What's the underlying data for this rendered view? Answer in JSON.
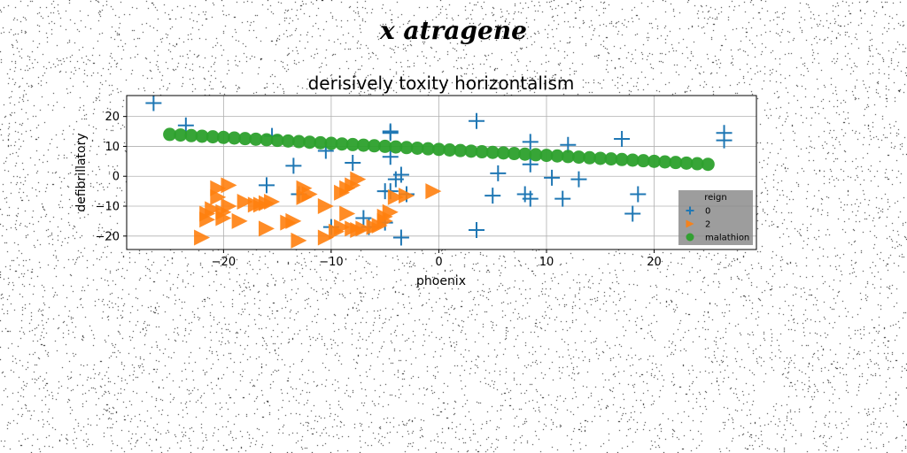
{
  "figure": {
    "suptitle": "x atragene"
  },
  "chart_data": {
    "type": "scatter",
    "title": "derisively toxity horizontalism",
    "xlabel": "phoenix",
    "ylabel": "defibrillatory",
    "xlim": [
      -29,
      29.5
    ],
    "ylim": [
      -24.5,
      27
    ],
    "xticks": [
      -20,
      -10,
      0,
      10,
      20
    ],
    "yticks": [
      -20,
      -10,
      0,
      10,
      20
    ],
    "grid": true,
    "legend": {
      "title": "reign",
      "position": "lower-right"
    },
    "series": [
      {
        "name": "0",
        "marker": "plus",
        "color": "#1f77b4",
        "points": [
          [
            -26.5,
            24.5
          ],
          [
            -23.5,
            17
          ],
          [
            -15.5,
            13.5
          ],
          [
            -13.5,
            3.5
          ],
          [
            -13,
            -6
          ],
          [
            -10.5,
            8.5
          ],
          [
            -8,
            4.5
          ],
          [
            -10,
            -17
          ],
          [
            -7,
            -14
          ],
          [
            -6.5,
            -17
          ],
          [
            -5,
            -15.5
          ],
          [
            -4.5,
            14.5
          ],
          [
            -4.5,
            15
          ],
          [
            -4.5,
            6.5
          ],
          [
            -4.5,
            -5
          ],
          [
            -4,
            -1
          ],
          [
            -3.5,
            -20.5
          ],
          [
            -3.5,
            0.5
          ],
          [
            -5,
            -5
          ],
          [
            -3,
            -6
          ],
          [
            -16,
            -3
          ],
          [
            3.5,
            18.5
          ],
          [
            3.5,
            -18
          ],
          [
            5,
            -6.5
          ],
          [
            5.5,
            1
          ],
          [
            8,
            -6
          ],
          [
            8.5,
            4
          ],
          [
            8.5,
            11.5
          ],
          [
            8.5,
            -7.5
          ],
          [
            10.5,
            -0.5
          ],
          [
            11.5,
            -7.5
          ],
          [
            12,
            10.5
          ],
          [
            13,
            -1
          ],
          [
            17,
            12.5
          ],
          [
            18,
            -12.5
          ],
          [
            18.5,
            -6
          ],
          [
            26.5,
            14.5
          ],
          [
            26.5,
            12
          ]
        ]
      },
      {
        "name": "2",
        "marker": "triangle-right",
        "color": "#ff7f0e",
        "points": [
          [
            -22,
            -20.5
          ],
          [
            -21.5,
            -12.5
          ],
          [
            -21,
            -11
          ],
          [
            -21.5,
            -14.5
          ],
          [
            -20.5,
            -4
          ],
          [
            -20.5,
            -7
          ],
          [
            -20,
            -12
          ],
          [
            -20,
            -14
          ],
          [
            -19.5,
            -10
          ],
          [
            -19.5,
            -3
          ],
          [
            -18.5,
            -15
          ],
          [
            -18,
            -8.5
          ],
          [
            -17,
            -9.5
          ],
          [
            -16.5,
            -9.5
          ],
          [
            -16,
            -17.5
          ],
          [
            -16,
            -9
          ],
          [
            -15.5,
            -8.5
          ],
          [
            -14,
            -15.5
          ],
          [
            -13.5,
            -15
          ],
          [
            -13,
            -21.5
          ],
          [
            -12.5,
            -4
          ],
          [
            -12.5,
            -7
          ],
          [
            -12,
            -6
          ],
          [
            -10.5,
            -20.5
          ],
          [
            -10.5,
            -10
          ],
          [
            -9.5,
            -18.5
          ],
          [
            -9,
            -5.5
          ],
          [
            -9,
            -17
          ],
          [
            -8.5,
            -12.5
          ],
          [
            -8.5,
            -4
          ],
          [
            -8,
            -17.5
          ],
          [
            -8,
            -3
          ],
          [
            -7.5,
            -1
          ],
          [
            -7.5,
            -18
          ],
          [
            -7,
            -17.5
          ],
          [
            -6,
            -17
          ],
          [
            -5.5,
            -16.5
          ],
          [
            -5,
            -15
          ],
          [
            -5,
            -13.5
          ],
          [
            -4.5,
            -12
          ],
          [
            -4,
            -7
          ],
          [
            -3,
            -6.5
          ],
          [
            -0.5,
            -5
          ]
        ]
      },
      {
        "name": "malathion",
        "marker": "circle",
        "color": "#2ca02c",
        "points": [
          [
            -25,
            14
          ],
          [
            -24,
            13.8
          ],
          [
            -23,
            13.6
          ],
          [
            -22,
            13.4
          ],
          [
            -21,
            13.2
          ],
          [
            -20,
            13
          ],
          [
            -19,
            12.8
          ],
          [
            -18,
            12.6
          ],
          [
            -17,
            12.4
          ],
          [
            -16,
            12.2
          ],
          [
            -15,
            12
          ],
          [
            -14,
            11.8
          ],
          [
            -13,
            11.6
          ],
          [
            -12,
            11.4
          ],
          [
            -11,
            11.2
          ],
          [
            -10,
            11
          ],
          [
            -9,
            10.8
          ],
          [
            -8,
            10.6
          ],
          [
            -7,
            10.4
          ],
          [
            -6,
            10.2
          ],
          [
            -5,
            10
          ],
          [
            -4,
            9.8
          ],
          [
            -3,
            9.6
          ],
          [
            -2,
            9.4
          ],
          [
            -1,
            9.2
          ],
          [
            0,
            9
          ],
          [
            1,
            8.8
          ],
          [
            2,
            8.6
          ],
          [
            3,
            8.4
          ],
          [
            4,
            8.2
          ],
          [
            5,
            8
          ],
          [
            6,
            7.8
          ],
          [
            7,
            7.6
          ],
          [
            8,
            7.4
          ],
          [
            9,
            7.2
          ],
          [
            10,
            7
          ],
          [
            11,
            6.8
          ],
          [
            12,
            6.6
          ],
          [
            13,
            6.4
          ],
          [
            14,
            6.2
          ],
          [
            15,
            6
          ],
          [
            16,
            5.8
          ],
          [
            17,
            5.6
          ],
          [
            18,
            5.4
          ],
          [
            19,
            5.2
          ],
          [
            20,
            5
          ],
          [
            21,
            4.8
          ],
          [
            22,
            4.6
          ],
          [
            23,
            4.4
          ],
          [
            24,
            4.2
          ],
          [
            25,
            4
          ]
        ]
      }
    ]
  }
}
